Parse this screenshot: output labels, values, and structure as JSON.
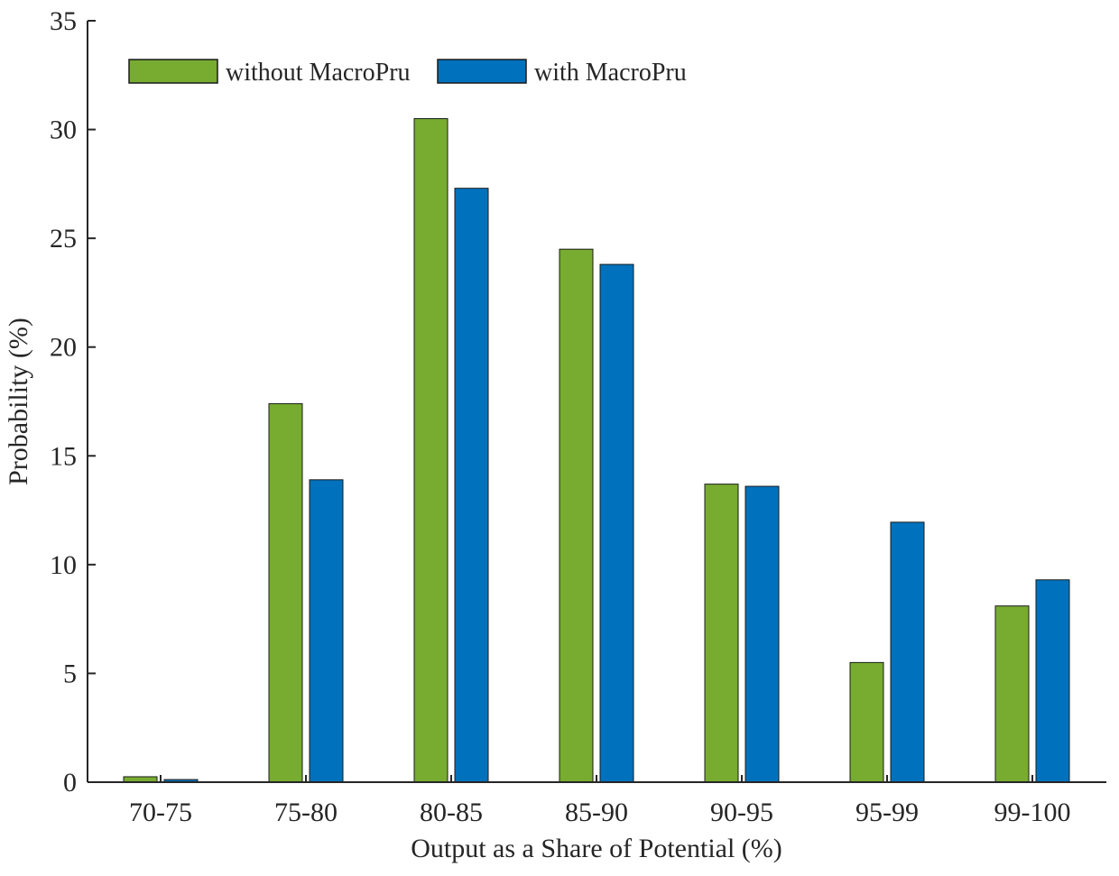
{
  "chart_data": {
    "type": "bar",
    "title": "",
    "xlabel": "Output as a Share of Potential (%)",
    "ylabel": "Probability (%)",
    "ylim": [
      0,
      35
    ],
    "yticks": [
      0,
      5,
      10,
      15,
      20,
      25,
      30,
      35
    ],
    "grid": false,
    "legend_position": "top-left",
    "categories": [
      "70-75",
      "75-80",
      "80-85",
      "85-90",
      "90-95",
      "95-99",
      "99-100"
    ],
    "series": [
      {
        "name": "without MacroPru",
        "color": "#77ac30",
        "values": [
          0.25,
          17.4,
          30.5,
          24.5,
          13.7,
          5.5,
          8.1
        ]
      },
      {
        "name": "with MacroPru",
        "color": "#0072bd",
        "values": [
          0.12,
          13.9,
          27.3,
          23.8,
          13.6,
          11.95,
          9.3
        ]
      }
    ]
  }
}
